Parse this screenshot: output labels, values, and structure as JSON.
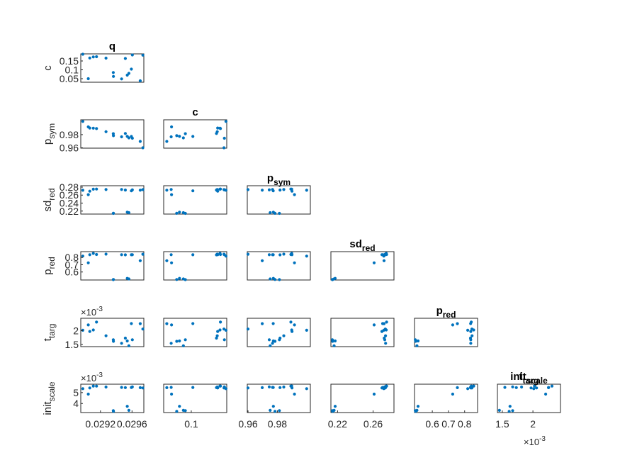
{
  "colors": {
    "marker": "#0072BD",
    "axis": "#262626",
    "background": "#ffffff"
  },
  "chart_data": {
    "type": "scatter",
    "layout": "lower-triangular scatter matrix",
    "params": [
      {
        "key": "q",
        "base": "q",
        "sub": ""
      },
      {
        "key": "c",
        "base": "c",
        "sub": ""
      },
      {
        "key": "p_sym",
        "base": "p",
        "sub": "sym"
      },
      {
        "key": "sd_red",
        "base": "sd",
        "sub": "red"
      },
      {
        "key": "p_red",
        "base": "p",
        "sub": "red"
      },
      {
        "key": "t_targ",
        "base": "t",
        "sub": "targ"
      },
      {
        "key": "initscale",
        "base": "init",
        "sub": "scale"
      }
    ],
    "ranges": {
      "q": [
        0.02895,
        0.02975
      ],
      "c": [
        0.03,
        0.19
      ],
      "p_sym": [
        0.9595,
        1.0025
      ],
      "sd_red": [
        0.2125,
        0.2835
      ],
      "p_red": [
        0.49,
        0.88
      ],
      "t_targ": [
        0.00142,
        0.00245
      ],
      "initscale": [
        0.00317,
        0.00577
      ]
    },
    "row_ticks": [
      {
        "values": [
          0.05,
          0.1,
          0.15
        ],
        "labels": [
          "0.05",
          "0.1",
          "0.15"
        ],
        "exponent": ""
      },
      {
        "values": [
          0.96,
          0.98
        ],
        "labels": [
          "0.96",
          "0.98"
        ],
        "exponent": ""
      },
      {
        "values": [
          0.22,
          0.24,
          0.26,
          0.28
        ],
        "labels": [
          "0.22",
          "0.24",
          "0.26",
          "0.28"
        ],
        "exponent": ""
      },
      {
        "values": [
          0.6,
          0.7,
          0.8
        ],
        "labels": [
          "0.6",
          "0.7",
          "0.8"
        ],
        "exponent": ""
      },
      {
        "values": [
          0.0015,
          0.002
        ],
        "labels": [
          "1.5",
          "2"
        ],
        "exponent": "10-3"
      },
      {
        "values": [
          0.004,
          0.005
        ],
        "labels": [
          "4",
          "5"
        ],
        "exponent": "10-3"
      }
    ],
    "col_ticks": [
      {
        "values": [
          0.0292,
          0.0296
        ],
        "labels": [
          "0.0292",
          "0.0296"
        ],
        "exponent": ""
      },
      {
        "values": [
          0.1
        ],
        "labels": [
          "0.1"
        ],
        "exponent": ""
      },
      {
        "values": [
          0.96,
          0.98
        ],
        "labels": [
          "0.96",
          "0.98"
        ],
        "exponent": ""
      },
      {
        "values": [
          0.22,
          0.26
        ],
        "labels": [
          "0.22",
          "0.26"
        ],
        "exponent": ""
      },
      {
        "values": [
          0.6,
          0.7,
          0.8
        ],
        "labels": [
          "0.6",
          "0.7",
          "0.8"
        ],
        "exponent": ""
      },
      {
        "values": [
          0.0015,
          0.002
        ],
        "labels": [
          "1.5",
          "2"
        ],
        "exponent": "10-3"
      }
    ],
    "samples": [
      {
        "q": 0.029592,
        "c": 0.104,
        "p_sym": 0.9772,
        "sd_red": 0.2707,
        "p_red": 0.837,
        "t_targ": 0.002256,
        "initscale": 0.005468
      },
      {
        "q": 0.02956,
        "c": 0.08,
        "p_sym": 0.9751,
        "sd_red": 0.2161,
        "p_red": 0.505,
        "t_targ": 0.001452,
        "initscale": 0.003369
      },
      {
        "q": 0.02954,
        "c": 0.07,
        "p_sym": 0.9773,
        "sd_red": 0.2173,
        "p_red": 0.512,
        "t_targ": 0.001626,
        "initscale": 0.003744
      },
      {
        "q": 0.029604,
        "c": 0.184,
        "p_sym": 0.9745,
        "sd_red": 0.2731,
        "p_red": 0.838,
        "t_targ": 0.001669,
        "initscale": 0.005521
      },
      {
        "q": 0.029515,
        "c": 0.164,
        "p_sym": 0.9818,
        "sd_red": 0.2726,
        "p_red": 0.836,
        "t_targ": 0.001729,
        "initscale": 0.005461
      },
      {
        "q": 0.028976,
        "c": 0.188,
        "p_sym": 1.0,
        "sd_red": 0.2721,
        "p_red": 0.819,
        "t_targ": 0.002014,
        "initscale": 0.005359
      },
      {
        "q": 0.029064,
        "c": 0.167,
        "p_sym": 0.99,
        "sd_red": 0.2699,
        "p_red": 0.838,
        "t_targ": 0.00197,
        "initscale": 0.005426
      },
      {
        "q": 0.029109,
        "c": 0.173,
        "p_sym": 0.9898,
        "sd_red": 0.2748,
        "p_red": 0.856,
        "t_targ": 0.002025,
        "initscale": 0.005604
      },
      {
        "q": 0.029045,
        "c": 0.05,
        "p_sym": 0.9917,
        "sd_red": 0.2612,
        "p_red": 0.726,
        "t_targ": 0.002208,
        "initscale": 0.004858
      },
      {
        "q": 0.02915,
        "c": 0.174,
        "p_sym": 0.9892,
        "sd_red": 0.2752,
        "p_red": 0.841,
        "t_targ": 0.002311,
        "initscale": 0.005594
      },
      {
        "q": 0.02927,
        "c": 0.166,
        "p_sym": 0.9844,
        "sd_red": 0.274,
        "p_red": 0.846,
        "t_targ": 0.001815,
        "initscale": 0.005509
      },
      {
        "q": 0.029363,
        "c": 0.085,
        "p_sym": 0.9814,
        "sd_red": 0.2142,
        "p_red": 0.495,
        "t_targ": 0.001669,
        "initscale": 0.003343
      },
      {
        "q": 0.029364,
        "c": 0.063,
        "p_sym": 0.9784,
        "sd_red": 0.2144,
        "p_red": 0.497,
        "t_targ": 0.001612,
        "initscale": 0.003283
      },
      {
        "q": 0.029468,
        "c": 0.049,
        "p_sym": 0.9767,
        "sd_red": 0.2741,
        "p_red": 0.838,
        "t_targ": 0.001542,
        "initscale": 0.00548
      },
      {
        "q": 0.029704,
        "c": 0.038,
        "p_sym": 0.9697,
        "sd_red": 0.2723,
        "p_red": 0.755,
        "t_targ": 0.002254,
        "initscale": 0.00545
      },
      {
        "q": 0.029737,
        "c": 0.183,
        "p_sym": 0.96,
        "sd_red": 0.2738,
        "p_red": 0.845,
        "t_targ": 0.002059,
        "initscale": 0.005426
      }
    ]
  }
}
